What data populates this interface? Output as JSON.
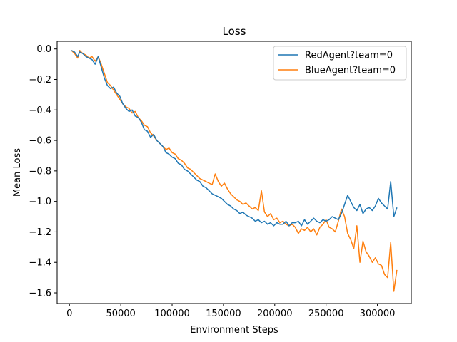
{
  "chart_data": {
    "type": "line",
    "title": "Loss",
    "xlabel": "Environment Steps",
    "ylabel": "Mean Loss",
    "xlim": [
      -12000,
      333000
    ],
    "ylim": [
      -1.67,
      0.05
    ],
    "xticks": [
      0,
      50000,
      100000,
      150000,
      200000,
      250000,
      300000
    ],
    "xtick_labels": [
      "0",
      "50000",
      "100000",
      "150000",
      "200000",
      "250000",
      "300000"
    ],
    "yticks": [
      0.0,
      -0.2,
      -0.4,
      -0.6,
      -0.8,
      -1.0,
      -1.2,
      -1.4,
      -1.6
    ],
    "ytick_labels": [
      "0.0",
      "−0.2",
      "−0.4",
      "−0.6",
      "−0.8",
      "−1.0",
      "−1.2",
      "−1.4",
      "−1.6"
    ],
    "grid": false,
    "legend_position": "top-right",
    "series": [
      {
        "name": "RedAgent?team=0",
        "color": "#1f77b4",
        "x": [
          2000,
          5000,
          8000,
          10000,
          13000,
          16000,
          19000,
          22000,
          25000,
          28000,
          31000,
          34000,
          37000,
          40000,
          43000,
          46000,
          49000,
          52000,
          55000,
          58000,
          61000,
          64000,
          67000,
          70000,
          73000,
          76000,
          79000,
          82000,
          85000,
          88000,
          91000,
          94000,
          97000,
          100000,
          103000,
          106000,
          109000,
          112000,
          115000,
          118000,
          121000,
          124000,
          127000,
          130000,
          133000,
          136000,
          139000,
          142000,
          145000,
          148000,
          151000,
          154000,
          157000,
          160000,
          163000,
          166000,
          169000,
          172000,
          175000,
          178000,
          181000,
          184000,
          187000,
          190000,
          193000,
          196000,
          199000,
          202000,
          205000,
          208000,
          211000,
          214000,
          217000,
          220000,
          223000,
          226000,
          229000,
          232000,
          235000,
          238000,
          241000,
          244000,
          247000,
          250000,
          253000,
          256000,
          259000,
          262000,
          265000,
          268000,
          271000,
          274000,
          277000,
          280000,
          283000,
          286000,
          289000,
          292000,
          295000,
          298000,
          301000,
          304000,
          307000,
          310000,
          313000,
          316000,
          319000
        ],
        "y": [
          -0.01,
          -0.02,
          -0.05,
          -0.02,
          -0.03,
          -0.05,
          -0.06,
          -0.07,
          -0.1,
          -0.05,
          -0.12,
          -0.19,
          -0.24,
          -0.26,
          -0.25,
          -0.29,
          -0.31,
          -0.36,
          -0.39,
          -0.41,
          -0.4,
          -0.44,
          -0.45,
          -0.48,
          -0.53,
          -0.54,
          -0.58,
          -0.56,
          -0.6,
          -0.62,
          -0.64,
          -0.68,
          -0.69,
          -0.71,
          -0.72,
          -0.75,
          -0.76,
          -0.79,
          -0.8,
          -0.82,
          -0.84,
          -0.86,
          -0.87,
          -0.9,
          -0.91,
          -0.93,
          -0.95,
          -0.96,
          -0.97,
          -0.98,
          -1.0,
          -1.02,
          -1.03,
          -1.05,
          -1.06,
          -1.08,
          -1.07,
          -1.09,
          -1.1,
          -1.11,
          -1.13,
          -1.12,
          -1.14,
          -1.13,
          -1.15,
          -1.14,
          -1.16,
          -1.14,
          -1.15,
          -1.15,
          -1.13,
          -1.16,
          -1.14,
          -1.14,
          -1.13,
          -1.16,
          -1.12,
          -1.15,
          -1.13,
          -1.11,
          -1.13,
          -1.14,
          -1.12,
          -1.13,
          -1.12,
          -1.1,
          -1.11,
          -1.12,
          -1.08,
          -1.02,
          -0.96,
          -1.0,
          -1.04,
          -1.06,
          -1.02,
          -1.08,
          -1.05,
          -1.04,
          -1.06,
          -1.03,
          -0.98,
          -1.01,
          -1.03,
          -1.05,
          -0.87,
          -1.1,
          -1.04
        ]
      },
      {
        "name": "BlueAgent?team=0",
        "color": "#ff7f0e",
        "x": [
          2000,
          5000,
          8000,
          10000,
          13000,
          16000,
          19000,
          22000,
          25000,
          28000,
          31000,
          34000,
          37000,
          40000,
          43000,
          46000,
          49000,
          52000,
          55000,
          58000,
          61000,
          64000,
          67000,
          70000,
          73000,
          76000,
          79000,
          82000,
          85000,
          88000,
          91000,
          94000,
          97000,
          100000,
          103000,
          106000,
          109000,
          112000,
          115000,
          118000,
          121000,
          124000,
          127000,
          130000,
          133000,
          136000,
          139000,
          142000,
          145000,
          148000,
          151000,
          154000,
          157000,
          160000,
          163000,
          166000,
          169000,
          172000,
          175000,
          178000,
          181000,
          184000,
          187000,
          190000,
          193000,
          196000,
          199000,
          202000,
          205000,
          208000,
          211000,
          214000,
          217000,
          220000,
          223000,
          226000,
          229000,
          232000,
          235000,
          238000,
          241000,
          244000,
          247000,
          250000,
          253000,
          256000,
          259000,
          262000,
          265000,
          268000,
          271000,
          274000,
          277000,
          280000,
          283000,
          286000,
          289000,
          292000,
          295000,
          298000,
          301000,
          304000,
          307000,
          310000,
          313000,
          316000,
          319000
        ],
        "y": [
          -0.01,
          -0.03,
          -0.06,
          -0.01,
          -0.03,
          -0.04,
          -0.06,
          -0.05,
          -0.08,
          -0.05,
          -0.1,
          -0.16,
          -0.22,
          -0.24,
          -0.27,
          -0.3,
          -0.33,
          -0.36,
          -0.38,
          -0.39,
          -0.42,
          -0.41,
          -0.45,
          -0.47,
          -0.5,
          -0.51,
          -0.55,
          -0.57,
          -0.6,
          -0.62,
          -0.64,
          -0.66,
          -0.65,
          -0.68,
          -0.69,
          -0.72,
          -0.73,
          -0.75,
          -0.78,
          -0.79,
          -0.81,
          -0.83,
          -0.85,
          -0.86,
          -0.87,
          -0.88,
          -0.89,
          -0.82,
          -0.87,
          -0.9,
          -0.88,
          -0.92,
          -0.95,
          -0.97,
          -0.99,
          -1.0,
          -1.02,
          -1.01,
          -1.03,
          -1.05,
          -1.04,
          -1.06,
          -0.93,
          -1.07,
          -1.1,
          -1.08,
          -1.12,
          -1.11,
          -1.14,
          -1.13,
          -1.15,
          -1.16,
          -1.15,
          -1.17,
          -1.21,
          -1.18,
          -1.19,
          -1.17,
          -1.2,
          -1.18,
          -1.22,
          -1.17,
          -1.15,
          -1.12,
          -1.17,
          -1.18,
          -1.2,
          -1.13,
          -1.05,
          -1.1,
          -1.21,
          -1.25,
          -1.31,
          -1.16,
          -1.4,
          -1.26,
          -1.33,
          -1.36,
          -1.4,
          -1.37,
          -1.41,
          -1.42,
          -1.48,
          -1.5,
          -1.27,
          -1.59,
          -1.45
        ]
      }
    ]
  }
}
